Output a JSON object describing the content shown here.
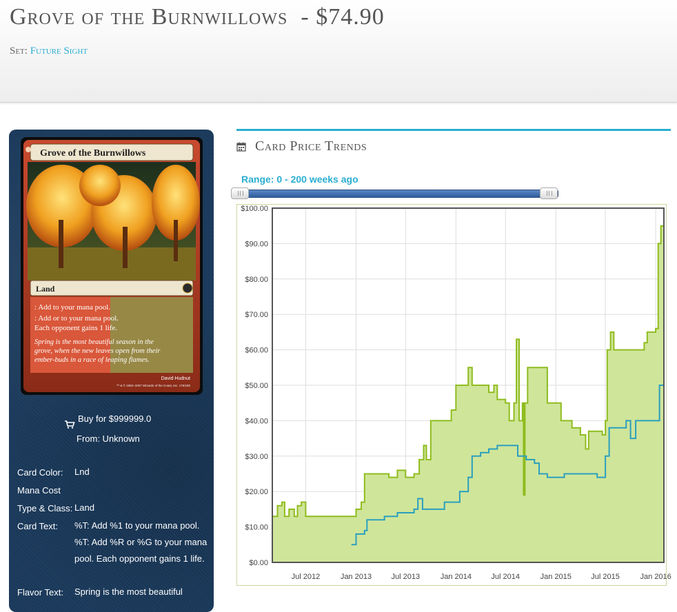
{
  "header": {
    "card_name": "Grove of the Burnwillows",
    "price": "- $74.90",
    "set_label": "Set:",
    "set_name": "Future Sight"
  },
  "card_image": {
    "title": "Grove of the Burnwillows",
    "type_line": "Land",
    "rules_1": ": Add  to your mana pool.",
    "rules_2": ": Add  or  to your mana pool.",
    "rules_3": "Each opponent gains 1 life.",
    "flavor_1": "Spring is the most beautiful season in the",
    "flavor_2": "grove, when the new leaves open from their",
    "flavor_3": "ember-buds in a race of leaping flames.",
    "artist": "David Hudnut",
    "copyright": "™ & © 1993–2007 Wizards of the Coast, Inc. 176/180"
  },
  "buy": {
    "icon": "cart-icon",
    "label": "Buy for $999999.0",
    "from": "From: Unknown"
  },
  "details": [
    {
      "label": "Card Color:",
      "value": "Lnd"
    },
    {
      "label": "Mana Cost",
      "value": ""
    },
    {
      "label": "Type & Class:",
      "value": "Land"
    },
    {
      "label": "Card Text:",
      "value": "%T: Add %1 to your mana pool. %T: Add %R or %G to your mana pool. Each opponent gains 1 life."
    },
    {
      "label": "Flavor Text:",
      "value": "Spring is the most beautiful"
    }
  ],
  "trends": {
    "icon": "calendar-icon",
    "title": "Card Price Trends",
    "range_label": "Range: 0 - 200 weeks ago"
  },
  "chart_data": {
    "type": "line",
    "y_ticks": [
      "$0.00",
      "$10.00",
      "$20.00",
      "$30.00",
      "$40.00",
      "$50.00",
      "$60.00",
      "$70.00",
      "$80.00",
      "$90.00",
      "$100.00"
    ],
    "ylim": [
      0,
      100
    ],
    "x_ticks": [
      "Jul 2012",
      "Jan 2013",
      "Jul 2013",
      "Jan 2014",
      "Jul 2014",
      "Jan 2015",
      "Jul 2015",
      "Jan 2016"
    ],
    "xlim": [
      "2012-03-01",
      "2016-01-31"
    ],
    "grid": true,
    "colors": {
      "high": "#8fbc1e",
      "fill": "#cfe59a",
      "low": "#2a9fbf"
    },
    "series": [
      {
        "key": "high",
        "points": [
          [
            "2012-03-01",
            13
          ],
          [
            "2012-03-20",
            16
          ],
          [
            "2012-04-05",
            17
          ],
          [
            "2012-04-15",
            13
          ],
          [
            "2012-05-01",
            15
          ],
          [
            "2012-05-20",
            13
          ],
          [
            "2012-06-01",
            16
          ],
          [
            "2012-06-15",
            17
          ],
          [
            "2012-07-01",
            13
          ],
          [
            "2012-08-01",
            13
          ],
          [
            "2012-10-01",
            13
          ],
          [
            "2012-12-15",
            13
          ],
          [
            "2013-01-01",
            15
          ],
          [
            "2013-01-20",
            17
          ],
          [
            "2013-02-01",
            25
          ],
          [
            "2013-03-15",
            25
          ],
          [
            "2013-04-01",
            25
          ],
          [
            "2013-05-01",
            24
          ],
          [
            "2013-06-01",
            26
          ],
          [
            "2013-07-01",
            24
          ],
          [
            "2013-08-01",
            25
          ],
          [
            "2013-08-20",
            29
          ],
          [
            "2013-09-05",
            33
          ],
          [
            "2013-09-15",
            29
          ],
          [
            "2013-10-01",
            40
          ],
          [
            "2013-11-01",
            40
          ],
          [
            "2013-12-01",
            40
          ],
          [
            "2013-12-15",
            43
          ],
          [
            "2014-01-01",
            50
          ],
          [
            "2014-02-01",
            50
          ],
          [
            "2014-02-15",
            55
          ],
          [
            "2014-03-01",
            50
          ],
          [
            "2014-04-01",
            50
          ],
          [
            "2014-05-01",
            48
          ],
          [
            "2014-05-20",
            50
          ],
          [
            "2014-06-01",
            46
          ],
          [
            "2014-07-01",
            45
          ],
          [
            "2014-07-15",
            40
          ],
          [
            "2014-08-01",
            45
          ],
          [
            "2014-08-10",
            63
          ],
          [
            "2014-08-20",
            40
          ],
          [
            "2014-09-01",
            45
          ],
          [
            "2014-09-05",
            19
          ],
          [
            "2014-09-10",
            45
          ],
          [
            "2014-09-20",
            55
          ],
          [
            "2014-10-15",
            55
          ],
          [
            "2014-11-15",
            55
          ],
          [
            "2014-12-01",
            45
          ],
          [
            "2015-01-01",
            45
          ],
          [
            "2015-01-20",
            40
          ],
          [
            "2015-03-01",
            38
          ],
          [
            "2015-03-20",
            38
          ],
          [
            "2015-04-01",
            36
          ],
          [
            "2015-04-20",
            32
          ],
          [
            "2015-05-01",
            37
          ],
          [
            "2015-06-01",
            37
          ],
          [
            "2015-06-20",
            36
          ],
          [
            "2015-07-01",
            40
          ],
          [
            "2015-07-08",
            60
          ],
          [
            "2015-07-20",
            65
          ],
          [
            "2015-08-01",
            60
          ],
          [
            "2015-09-01",
            60
          ],
          [
            "2015-10-01",
            60
          ],
          [
            "2015-11-01",
            60
          ],
          [
            "2015-11-20",
            62
          ],
          [
            "2015-12-01",
            65
          ],
          [
            "2015-12-15",
            65
          ],
          [
            "2016-01-01",
            66
          ],
          [
            "2016-01-10",
            90
          ],
          [
            "2016-01-20",
            95
          ],
          [
            "2016-01-31",
            95
          ]
        ]
      },
      {
        "key": "low",
        "points": [
          [
            "2012-12-15",
            5
          ],
          [
            "2013-01-01",
            8
          ],
          [
            "2013-02-01",
            9
          ],
          [
            "2013-02-10",
            12
          ],
          [
            "2013-04-01",
            12
          ],
          [
            "2013-04-15",
            13
          ],
          [
            "2013-06-01",
            14
          ],
          [
            "2013-07-01",
            14
          ],
          [
            "2013-08-01",
            15
          ],
          [
            "2013-08-15",
            18
          ],
          [
            "2013-09-01",
            15
          ],
          [
            "2013-11-01",
            15
          ],
          [
            "2013-11-20",
            17
          ],
          [
            "2013-12-15",
            17
          ],
          [
            "2014-01-15",
            20
          ],
          [
            "2014-02-15",
            24
          ],
          [
            "2014-03-01",
            30
          ],
          [
            "2014-04-01",
            31
          ],
          [
            "2014-05-01",
            32
          ],
          [
            "2014-06-01",
            33
          ],
          [
            "2014-07-01",
            33
          ],
          [
            "2014-08-01",
            33
          ],
          [
            "2014-08-15",
            30
          ],
          [
            "2014-09-15",
            29
          ],
          [
            "2014-10-15",
            28
          ],
          [
            "2014-11-01",
            25
          ],
          [
            "2014-12-01",
            24
          ],
          [
            "2015-01-01",
            24
          ],
          [
            "2015-02-01",
            25
          ],
          [
            "2015-03-01",
            25
          ],
          [
            "2015-04-01",
            25
          ],
          [
            "2015-05-01",
            25
          ],
          [
            "2015-06-01",
            24
          ],
          [
            "2015-07-01",
            30
          ],
          [
            "2015-07-15",
            38
          ],
          [
            "2015-09-01",
            38
          ],
          [
            "2015-09-15",
            40
          ],
          [
            "2015-10-01",
            35
          ],
          [
            "2015-10-20",
            40
          ],
          [
            "2015-12-15",
            40
          ],
          [
            "2016-01-01",
            40
          ],
          [
            "2016-01-15",
            50
          ],
          [
            "2016-01-31",
            50
          ]
        ]
      }
    ]
  }
}
